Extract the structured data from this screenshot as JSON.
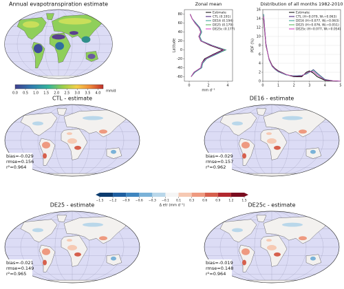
{
  "top_map": {
    "title": "Annual evapotranspiration estimate",
    "colorbar": {
      "clim": [
        0,
        4.25
      ],
      "ticks": [
        {
          "value": 0,
          "label": "0.0"
        },
        0.5,
        {
          "value": 1,
          "label": "1.0"
        },
        1.5,
        {
          "value": 2,
          "label": "2.0"
        },
        2.5,
        {
          "value": 3,
          "label": "3.0"
        },
        3.5,
        {
          "value": 4,
          "label": "4.0"
        }
      ],
      "unit": "mm/d"
    }
  },
  "chart_data": [
    {
      "type": "line",
      "title": "Zonal mean",
      "ylabel": "Latitude",
      "xlabel": "mm d⁻¹",
      "xlim": [
        -0.5,
        4.5
      ],
      "ylim": [
        -70,
        90
      ],
      "xticks": [
        0,
        2,
        4
      ],
      "yticks": [
        -60,
        -40,
        -20,
        0,
        20,
        40,
        60,
        80
      ],
      "grid": false,
      "y": [
        -60,
        -50,
        -40,
        -30,
        -20,
        -10,
        0,
        10,
        20,
        30,
        40,
        50,
        60,
        70,
        80
      ],
      "series": [
        {
          "name": "Estimate",
          "color": "#000000",
          "values": [
            0.2,
            0.5,
            1.2,
            1.3,
            1.6,
            2.5,
            3.5,
            2.2,
            1.2,
            1.0,
            1.2,
            1.0,
            0.6,
            0.3,
            0.1
          ]
        },
        {
          "name": "CTL (0.191)",
          "color": "#3b0f70",
          "values": [
            0.2,
            0.6,
            1.3,
            1.4,
            1.8,
            2.7,
            3.8,
            2.4,
            1.3,
            1.1,
            1.3,
            1.1,
            0.7,
            0.3,
            0.1
          ]
        },
        {
          "name": "DE16 (0.194)",
          "color": "#2a9d8f",
          "values": [
            0.2,
            0.6,
            1.3,
            1.4,
            1.8,
            2.8,
            3.8,
            2.4,
            1.3,
            1.1,
            1.3,
            1.1,
            0.7,
            0.3,
            0.1
          ]
        },
        {
          "name": "DE25 (0.179)",
          "color": "#4caf50",
          "values": [
            0.2,
            0.5,
            1.2,
            1.3,
            1.7,
            2.6,
            3.7,
            2.3,
            1.2,
            1.0,
            1.2,
            1.0,
            0.6,
            0.3,
            0.1
          ]
        },
        {
          "name": "DE25c (0.177)",
          "color": "#d62fbf",
          "values": [
            0.2,
            0.5,
            1.2,
            1.3,
            1.7,
            2.6,
            3.6,
            2.3,
            1.2,
            1.0,
            1.2,
            1.0,
            0.6,
            0.3,
            0.1
          ]
        }
      ]
    },
    {
      "type": "line",
      "title": "Distribution of all months 1982-2010",
      "ylabel": "PDF (%)",
      "xlim": [
        0,
        5
      ],
      "ylim": [
        0,
        16
      ],
      "xticks": [
        0,
        1,
        2,
        3,
        4,
        5
      ],
      "yticks": [
        0,
        2,
        4,
        6,
        8,
        10,
        12,
        14,
        16
      ],
      "grid": true,
      "x": [
        0.05,
        0.2,
        0.4,
        0.6,
        0.8,
        1.0,
        1.5,
        2.0,
        2.5,
        2.8,
        3.0,
        3.25,
        3.5,
        4.0,
        4.5,
        5.0
      ],
      "series": [
        {
          "name": "Estimate",
          "color": "#000000",
          "values": [
            14,
            8,
            5,
            3.5,
            2.8,
            2.3,
            1.5,
            1.0,
            1.0,
            2.0,
            2.3,
            1.8,
            1.0,
            0.2,
            0.05,
            0
          ]
        },
        {
          "name": "CTL (H=0.079, W₁=0.063)",
          "color": "#3b0f70",
          "values": [
            15,
            8.5,
            4.8,
            3.3,
            2.6,
            2.1,
            1.4,
            1.2,
            1.3,
            1.6,
            2.0,
            2.6,
            1.8,
            0.4,
            0.1,
            0
          ]
        },
        {
          "name": "DE16 (H=0.077, W₁=0.063)",
          "color": "#2a9d8f",
          "values": [
            15,
            8.4,
            4.8,
            3.3,
            2.6,
            2.1,
            1.4,
            1.2,
            1.3,
            1.6,
            2.0,
            2.5,
            1.7,
            0.4,
            0.1,
            0
          ]
        },
        {
          "name": "DE25 (H=0.076, W₁=0.051)",
          "color": "#4caf50",
          "values": [
            14.5,
            8.2,
            4.9,
            3.4,
            2.7,
            2.2,
            1.5,
            1.1,
            1.2,
            1.8,
            2.1,
            2.2,
            1.4,
            0.3,
            0.1,
            0
          ]
        },
        {
          "name": "DE25c (H=0.077, W₁=0.054)",
          "color": "#d62fbf",
          "values": [
            14.5,
            8.2,
            4.9,
            3.4,
            2.7,
            2.2,
            1.5,
            1.1,
            1.2,
            1.8,
            2.1,
            2.2,
            1.4,
            0.3,
            0.1,
            0
          ]
        }
      ]
    }
  ],
  "diff_maps": [
    {
      "title": "CTL - estimate",
      "stats": [
        "bias=-0.029",
        "rmse=0.156",
        "r²=0.964"
      ]
    },
    {
      "title": "DE16 - estimate",
      "stats": [
        "bias=-0.029",
        "rmse=0.157",
        "r²=0.962"
      ]
    },
    {
      "title": "DE25 - estimate",
      "stats": [
        "bias=-0.021",
        "rmse=0.149",
        "r²=0.965"
      ]
    },
    {
      "title": "DE25c - estimate",
      "stats": [
        "bias=-0.019",
        "rmse=0.148",
        "r²=0.964"
      ]
    }
  ],
  "diff_colorbar": {
    "label": "Δ etr (mm d⁻¹)",
    "ticks": [
      {
        "value": -1.5,
        "label": "−1.5"
      },
      {
        "value": -1.2,
        "label": "−1.2"
      },
      {
        "value": -0.9,
        "label": "−0.9"
      },
      {
        "value": -0.6,
        "label": "−0.6"
      },
      {
        "value": -0.3,
        "label": "−0.3"
      },
      {
        "value": -0.1,
        "label": "−0.1"
      },
      0.1,
      0.3,
      0.6,
      0.9,
      1.2,
      1.5
    ],
    "colors": [
      "#0b3b6e",
      "#1f5fa0",
      "#3f86c0",
      "#7ab2d8",
      "#b9d7ea",
      "#f5f5f5",
      "#f6c9b3",
      "#ee9a80",
      "#d6604d",
      "#b2282f",
      "#7a0c1f"
    ]
  }
}
